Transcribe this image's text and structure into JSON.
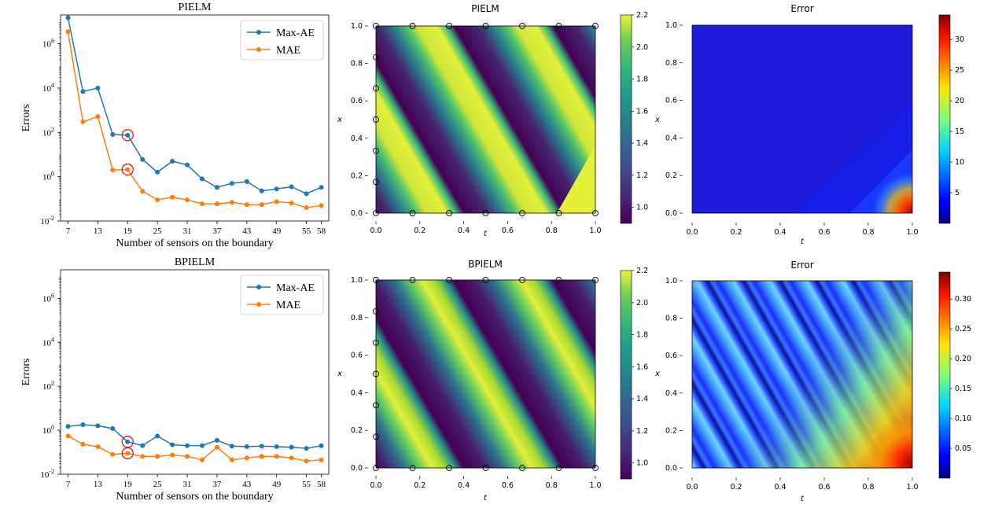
{
  "chart_data": [
    {
      "type": "line",
      "title": "PIELM",
      "xlabel": "Number of sensors on the boundary",
      "ylabel": "Errors",
      "yscale": "log",
      "ylim_exp": [
        -2,
        7.3
      ],
      "ytick_exponents": [
        -2,
        0,
        2,
        4,
        6
      ],
      "xticks": [
        "7",
        "13",
        "19",
        "25",
        "31",
        "37",
        "43",
        "49",
        "55",
        "58"
      ],
      "x": [
        7,
        10,
        13,
        16,
        19,
        22,
        25,
        28,
        31,
        34,
        37,
        40,
        43,
        46,
        49,
        52,
        55,
        58
      ],
      "series": [
        {
          "name": "Max-AE",
          "color": "#1f77b4",
          "values": [
            15000000,
            7000,
            10000,
            80,
            75,
            6,
            1.6,
            5,
            3.4,
            0.8,
            0.33,
            0.5,
            0.6,
            0.23,
            0.28,
            0.35,
            0.17,
            0.33
          ]
        },
        {
          "name": "MAE",
          "color": "#ff7f0e",
          "values": [
            3500000,
            300,
            520,
            2,
            2.1,
            0.22,
            0.09,
            0.12,
            0.09,
            0.06,
            0.06,
            0.07,
            0.055,
            0.055,
            0.075,
            0.065,
            0.04,
            0.05
          ]
        }
      ],
      "highlight_x": 19,
      "legend": "top-right"
    },
    {
      "type": "line",
      "title": "BPIELM",
      "xlabel": "Number of sensors on the boundary",
      "ylabel": "Errors",
      "yscale": "log",
      "ylim_exp": [
        -2,
        7.3
      ],
      "ytick_exponents": [
        -2,
        0,
        2,
        4,
        6
      ],
      "xticks": [
        "7",
        "13",
        "19",
        "25",
        "31",
        "37",
        "43",
        "49",
        "55",
        "58"
      ],
      "x": [
        7,
        10,
        13,
        16,
        19,
        22,
        25,
        28,
        31,
        34,
        37,
        40,
        43,
        46,
        49,
        52,
        55,
        58
      ],
      "series": [
        {
          "name": "Max-AE",
          "color": "#1f77b4",
          "values": [
            1.5,
            1.8,
            1.6,
            1.2,
            0.3,
            0.2,
            0.55,
            0.22,
            0.2,
            0.2,
            0.35,
            0.19,
            0.18,
            0.19,
            0.18,
            0.17,
            0.15,
            0.2
          ]
        },
        {
          "name": "MAE",
          "color": "#ff7f0e",
          "values": [
            0.55,
            0.23,
            0.18,
            0.08,
            0.09,
            0.065,
            0.065,
            0.075,
            0.065,
            0.045,
            0.17,
            0.045,
            0.055,
            0.065,
            0.065,
            0.055,
            0.04,
            0.045
          ]
        }
      ],
      "highlight_x": 19,
      "legend": "top-right"
    },
    {
      "type": "heatmap",
      "title": "PIELM",
      "xlabel": "t",
      "ylabel": "x",
      "xticks": [
        "0.0",
        "0.2",
        "0.4",
        "0.6",
        "0.8",
        "1.0"
      ],
      "yticks": [
        "0.0",
        "0.2",
        "0.4",
        "0.6",
        "0.8",
        "1.0"
      ],
      "colormap": "viridis",
      "colorbar_ticks": [
        "1.0",
        "1.2",
        "1.4",
        "1.6",
        "1.8",
        "2.0",
        "2.2"
      ],
      "color_range": [
        0.9,
        2.2
      ],
      "sensors_bottom_top_t": [
        0,
        0.1667,
        0.3333,
        0.5,
        0.6667,
        0.8333,
        1.0
      ],
      "sensors_left_x": [
        0.1667,
        0.3333,
        0.5,
        0.6667,
        0.8333
      ]
    },
    {
      "type": "heatmap",
      "title": "Error",
      "xlabel": "t",
      "ylabel": "x",
      "xticks": [
        "0.0",
        "0.2",
        "0.4",
        "0.6",
        "0.8",
        "1.0"
      ],
      "yticks": [
        "0.0",
        "0.2",
        "0.4",
        "0.6",
        "0.8",
        "1.0"
      ],
      "colormap": "jet",
      "colorbar_ticks": [
        "5",
        "10",
        "15",
        "20",
        "25",
        "30"
      ],
      "color_range": [
        0,
        34
      ]
    },
    {
      "type": "heatmap",
      "title": "BPIELM",
      "xlabel": "t",
      "ylabel": "x",
      "xticks": [
        "0.0",
        "0.2",
        "0.4",
        "0.6",
        "0.8",
        "1.0"
      ],
      "yticks": [
        "0.0",
        "0.2",
        "0.4",
        "0.6",
        "0.8",
        "1.0"
      ],
      "colormap": "viridis",
      "colorbar_ticks": [
        "1.0",
        "1.2",
        "1.4",
        "1.6",
        "1.8",
        "2.0",
        "2.2"
      ],
      "color_range": [
        0.9,
        2.2
      ],
      "sensors_bottom_top_t": [
        0,
        0.1667,
        0.3333,
        0.5,
        0.6667,
        0.8333,
        1.0
      ],
      "sensors_left_x": [
        0.1667,
        0.3333,
        0.5,
        0.6667,
        0.8333
      ]
    },
    {
      "type": "heatmap",
      "title": "Error",
      "xlabel": "t",
      "ylabel": "x",
      "xticks": [
        "0.0",
        "0.2",
        "0.4",
        "0.6",
        "0.8",
        "1.0"
      ],
      "yticks": [
        "0.0",
        "0.2",
        "0.4",
        "0.6",
        "0.8",
        "1.0"
      ],
      "colormap": "jet",
      "colorbar_ticks": [
        "0.05",
        "0.10",
        "0.15",
        "0.20",
        "0.25",
        "0.30"
      ],
      "color_range": [
        0,
        0.345
      ]
    }
  ]
}
